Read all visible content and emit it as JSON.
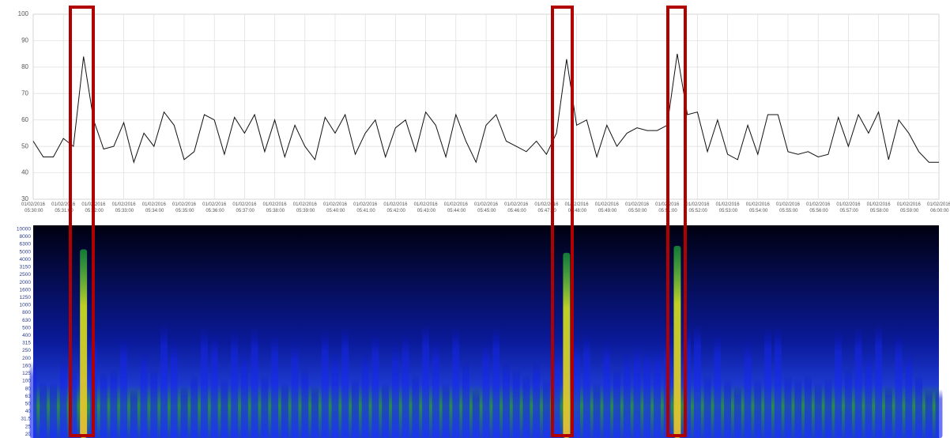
{
  "chart_data": [
    {
      "type": "line",
      "ylim": [
        30,
        100
      ],
      "yticks": [
        30,
        40,
        50,
        60,
        70,
        80,
        90,
        100
      ],
      "grid": true,
      "xticks": [
        "01/02/2016 05:30:00",
        "01/02/2016 05:31:00",
        "01/02/2016 05:32:00",
        "01/02/2016 05:33:00",
        "01/02/2016 05:34:00",
        "01/02/2016 05:35:00",
        "01/02/2016 05:36:00",
        "01/02/2016 05:37:00",
        "01/02/2016 05:38:00",
        "01/02/2016 05:39:00",
        "01/02/2016 05:40:00",
        "01/02/2016 05:41:00",
        "01/02/2016 05:42:00",
        "01/02/2016 05:43:00",
        "01/02/2016 05:44:00",
        "01/02/2016 05:45:00",
        "01/02/2016 05:46:00",
        "01/02/2016 05:47:00",
        "01/02/2016 05:48:00",
        "01/02/2016 05:49:00",
        "01/02/2016 05:50:00",
        "01/02/2016 05:51:00",
        "01/02/2016 05:52:00",
        "01/02/2016 05:53:00",
        "01/02/2016 05:54:00",
        "01/02/2016 05:55:00",
        "01/02/2016 05:56:00",
        "01/02/2016 05:57:00",
        "01/02/2016 05:58:00",
        "01/02/2016 05:59:00",
        "01/02/2016 06:00:00"
      ],
      "x": [
        "01/02/2016 05:30:00",
        "01/02/2016 05:30:20",
        "01/02/2016 05:30:40",
        "01/02/2016 05:31:00",
        "01/02/2016 05:31:20",
        "01/02/2016 05:31:40",
        "01/02/2016 05:32:00",
        "01/02/2016 05:32:20",
        "01/02/2016 05:32:40",
        "01/02/2016 05:33:00",
        "01/02/2016 05:33:20",
        "01/02/2016 05:33:40",
        "01/02/2016 05:34:00",
        "01/02/2016 05:34:20",
        "01/02/2016 05:34:40",
        "01/02/2016 05:35:00",
        "01/02/2016 05:35:20",
        "01/02/2016 05:35:40",
        "01/02/2016 05:36:00",
        "01/02/2016 05:36:20",
        "01/02/2016 05:36:40",
        "01/02/2016 05:37:00",
        "01/02/2016 05:37:20",
        "01/02/2016 05:37:40",
        "01/02/2016 05:38:00",
        "01/02/2016 05:38:20",
        "01/02/2016 05:38:40",
        "01/02/2016 05:39:00",
        "01/02/2016 05:39:20",
        "01/02/2016 05:39:40",
        "01/02/2016 05:40:00",
        "01/02/2016 05:40:20",
        "01/02/2016 05:40:40",
        "01/02/2016 05:41:00",
        "01/02/2016 05:41:20",
        "01/02/2016 05:41:40",
        "01/02/2016 05:42:00",
        "01/02/2016 05:42:20",
        "01/02/2016 05:42:40",
        "01/02/2016 05:43:00",
        "01/02/2016 05:43:20",
        "01/02/2016 05:43:40",
        "01/02/2016 05:44:00",
        "01/02/2016 05:44:20",
        "01/02/2016 05:44:40",
        "01/02/2016 05:45:00",
        "01/02/2016 05:45:20",
        "01/02/2016 05:45:40",
        "01/02/2016 05:46:00",
        "01/02/2016 05:46:20",
        "01/02/2016 05:46:40",
        "01/02/2016 05:47:00",
        "01/02/2016 05:47:20",
        "01/02/2016 05:47:40",
        "01/02/2016 05:48:00",
        "01/02/2016 05:48:20",
        "01/02/2016 05:48:40",
        "01/02/2016 05:49:00",
        "01/02/2016 05:49:20",
        "01/02/2016 05:49:40",
        "01/02/2016 05:50:00",
        "01/02/2016 05:50:20",
        "01/02/2016 05:50:40",
        "01/02/2016 05:51:00",
        "01/02/2016 05:51:20",
        "01/02/2016 05:51:40",
        "01/02/2016 05:52:00",
        "01/02/2016 05:52:20",
        "01/02/2016 05:52:40",
        "01/02/2016 05:53:00",
        "01/02/2016 05:53:20",
        "01/02/2016 05:53:40",
        "01/02/2016 05:54:00",
        "01/02/2016 05:54:20",
        "01/02/2016 05:54:40",
        "01/02/2016 05:55:00",
        "01/02/2016 05:55:20",
        "01/02/2016 05:55:40",
        "01/02/2016 05:56:00",
        "01/02/2016 05:56:20",
        "01/02/2016 05:56:40",
        "01/02/2016 05:57:00",
        "01/02/2016 05:57:20",
        "01/02/2016 05:57:40",
        "01/02/2016 05:58:00",
        "01/02/2016 05:58:20",
        "01/02/2016 05:58:40",
        "01/02/2016 05:59:00",
        "01/02/2016 05:59:20",
        "01/02/2016 05:59:40",
        "01/02/2016 06:00:00"
      ],
      "series": [
        {
          "color": "#111111",
          "values": [
            52,
            46,
            46,
            53,
            50,
            84,
            60,
            49,
            50,
            59,
            44,
            55,
            50,
            63,
            58,
            45,
            48,
            62,
            60,
            47,
            61,
            55,
            62,
            48,
            60,
            46,
            58,
            50,
            45,
            61,
            55,
            62,
            47,
            55,
            60,
            46,
            57,
            60,
            48,
            63,
            58,
            46,
            62,
            52,
            44,
            58,
            62,
            52,
            50,
            48,
            52,
            47,
            55,
            83,
            58,
            60,
            46,
            58,
            50,
            55,
            57,
            56,
            56,
            58,
            85,
            62,
            63,
            48,
            60,
            47,
            45,
            58,
            47,
            62,
            62,
            48,
            47,
            48,
            46,
            47,
            61,
            50,
            62,
            55,
            63,
            45,
            60,
            55,
            48,
            44,
            44
          ]
        }
      ]
    },
    {
      "type": "heatmap",
      "categories": [
        10000,
        8000,
        6300,
        5000,
        4000,
        3150,
        2500,
        2000,
        1600,
        1250,
        1000,
        800,
        630,
        500,
        400,
        315,
        250,
        200,
        160,
        125,
        100,
        80,
        63,
        50,
        40,
        31.5,
        25,
        20
      ]
    }
  ]
}
